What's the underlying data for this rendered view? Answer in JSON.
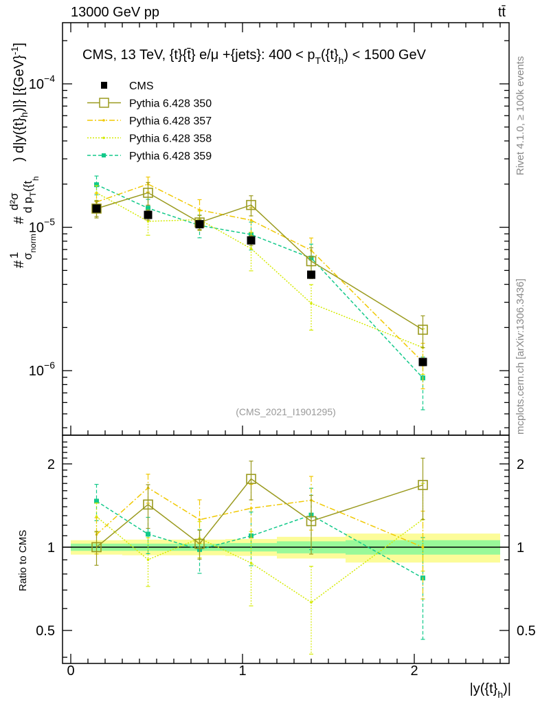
{
  "header": {
    "left": "13000 GeV pp",
    "right": "tt̄"
  },
  "side_text": {
    "right_top": "Rivet 4.1.0, ≥ 100k events",
    "right_bottom": "mcplots.cern.ch [arXiv:1306.3436]"
  },
  "colors": {
    "cms": "#000000",
    "p350": "#9a9a1e",
    "p357": "#f0c800",
    "p358": "#d4ea00",
    "p359": "#12c98a",
    "band_inner": "#99f999",
    "band_outer": "#fcfc99"
  },
  "chart_data": [
    {
      "type": "line",
      "title": "CMS, 13 TeV, {t}{t̄} e/μ +{jets}: 400 <  p_T({t}_h) < 1500 GeV",
      "title_parts": {
        "main": "CMS, 13 TeV, {t}{t̄} e/μ +{jets}: 400 <  p",
        "sub1": "T",
        "mid": "({t}",
        "sub2": "h",
        "end": ") < 1500 GeV"
      },
      "ylabel_parts": [
        "#",
        "1",
        "σ",
        "norm",
        "#",
        "d²σ",
        "d p",
        "T",
        "({t",
        "h",
        ") d|y({t}",
        "h",
        ")|} [{GeV}",
        "-1",
        "]"
      ],
      "yscale": "log",
      "ylim": [
        3.55e-07,
        0.000267
      ],
      "xlim": [
        -0.048,
        2.552
      ],
      "ytick_labels": [
        {
          "v": 0.0001,
          "base": "10",
          "exp": "−4"
        },
        {
          "v": 1e-05,
          "base": "10",
          "exp": "−5"
        },
        {
          "v": 1e-06,
          "base": "10",
          "exp": "−6"
        }
      ],
      "watermark": "(CMS_2021_I1901295)",
      "legend_position": "top-left",
      "x": [
        0.15,
        0.45,
        0.75,
        1.05,
        1.4,
        2.05
      ],
      "bin_edges": [
        0,
        0.3,
        0.6,
        0.9,
        1.2,
        1.6,
        2.5
      ],
      "series": [
        {
          "name": "CMS",
          "key": "cms",
          "style": "data",
          "values": [
            1.35e-05,
            1.22e-05,
            1.05e-05,
            8.1e-06,
            4.67e-06,
            1.15e-06
          ],
          "rel_err": [
            0.12,
            0.08,
            0.08,
            0.08,
            0.06,
            0.06
          ]
        },
        {
          "name": "Pythia 6.428 350",
          "key": "p350",
          "style": "solid",
          "values": [
            1.35e-05,
            1.74e-05,
            1.08e-05,
            1.43e-05,
            5.8e-06,
            1.93e-06
          ],
          "rel_err": [
            0.14,
            0.18,
            0.12,
            0.16,
            0.24,
            0.25
          ]
        },
        {
          "name": "Pythia 6.428 357",
          "key": "p357",
          "style": "dashdot",
          "values": [
            1.5e-05,
            2e-05,
            1.32e-05,
            1.12e-05,
            6.9e-06,
            1.15e-06
          ],
          "rel_err": [
            0.15,
            0.12,
            0.18,
            0.22,
            0.22,
            0.35
          ]
        },
        {
          "name": "Pythia 6.428 358",
          "key": "p358",
          "style": "dotted",
          "values": [
            1.74e-05,
            1.1e-05,
            1.13e-05,
            7.1e-06,
            2.95e-06,
            1.45e-06
          ],
          "rel_err": [
            0.12,
            0.2,
            0.15,
            0.3,
            0.35,
            0.35
          ]
        },
        {
          "name": "Pythia 6.428 359",
          "key": "p359",
          "style": "dashed",
          "values": [
            1.98e-05,
            1.36e-05,
            1.03e-05,
            8.9e-06,
            6.1e-06,
            8.9e-07
          ],
          "rel_err": [
            0.15,
            0.15,
            0.18,
            0.22,
            0.25,
            0.4
          ]
        }
      ]
    },
    {
      "type": "line",
      "ylabel": "Ratio to CMS",
      "xlabel_parts": {
        "main": "|y({t}",
        "sub": "h",
        "end": ")|"
      },
      "yscale": "log",
      "ylim": [
        0.38,
        2.54
      ],
      "ytick_labels": [
        {
          "v": 2,
          "label": "2"
        },
        {
          "v": 1,
          "label": "1"
        },
        {
          "v": 0.5,
          "label": "0.5"
        }
      ],
      "xtick_labels": [
        {
          "v": 0,
          "label": "0"
        },
        {
          "v": 1,
          "label": "1"
        },
        {
          "v": 2,
          "label": "2"
        }
      ],
      "band_inner_rel": [
        0.03,
        0.03,
        0.03,
        0.035,
        0.05,
        0.06
      ],
      "band_outer_rel": [
        0.06,
        0.065,
        0.065,
        0.07,
        0.09,
        0.12
      ]
    }
  ]
}
